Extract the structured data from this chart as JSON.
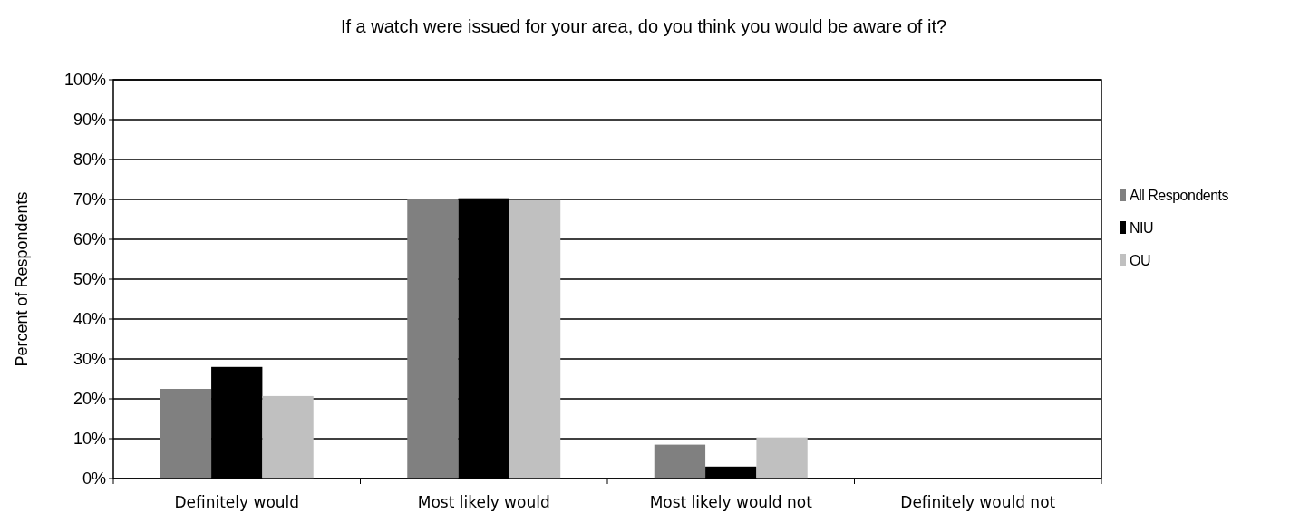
{
  "chart_data": {
    "type": "bar",
    "title": "If a watch were issued for your area, do you think you would be aware of it?",
    "ylabel": "Percent of Respondents",
    "categories": [
      "Definitely would",
      "Most likely would",
      "Most likely would not",
      "Definitely would not"
    ],
    "series": [
      {
        "name": "All Respondents",
        "color": "#808080",
        "values": [
          22.5,
          70,
          8.5,
          0
        ]
      },
      {
        "name": "NIU",
        "color": "#000000",
        "values": [
          28,
          70.3,
          3,
          0
        ]
      },
      {
        "name": "OU",
        "color": "#c0c0c0",
        "values": [
          20.7,
          69.8,
          10.3,
          0
        ]
      }
    ],
    "ylim": [
      0,
      100
    ],
    "yticks": [
      {
        "value": 0,
        "label": "0%"
      },
      {
        "value": 10,
        "label": "10%"
      },
      {
        "value": 20,
        "label": "20%"
      },
      {
        "value": 30,
        "label": "30%"
      },
      {
        "value": 40,
        "label": "40%"
      },
      {
        "value": 50,
        "label": "50%"
      },
      {
        "value": 60,
        "label": "60%"
      },
      {
        "value": 70,
        "label": "70%"
      },
      {
        "value": 80,
        "label": "80%"
      },
      {
        "value": 90,
        "label": "90%"
      },
      {
        "value": 100,
        "label": "100%"
      }
    ],
    "grid": "y",
    "legend": "right"
  }
}
